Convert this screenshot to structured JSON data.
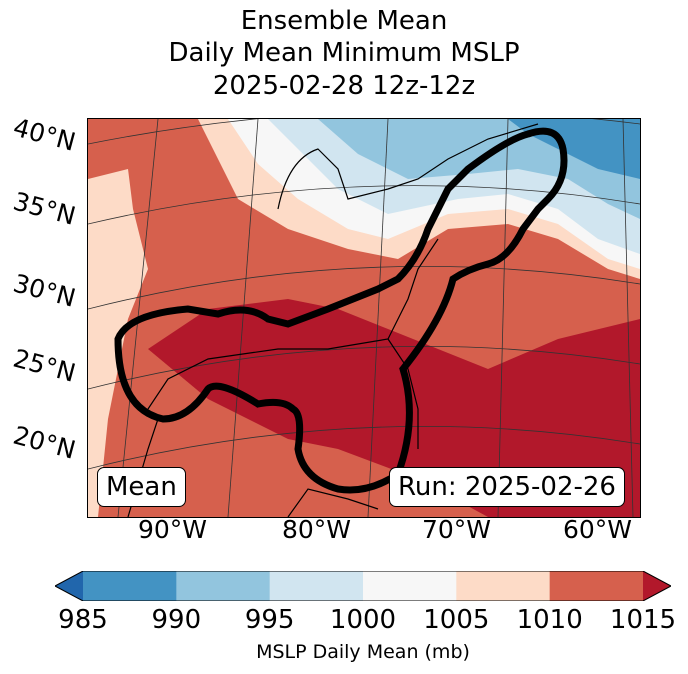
{
  "chart_data": {
    "type": "map",
    "title_lines": [
      "Ensemble Mean",
      "Daily Mean Minimum MSLP",
      "2025-02-28 12z-12z"
    ],
    "lat_ticks": [
      "40°N",
      "35°N",
      "30°N",
      "25°N",
      "20°N"
    ],
    "lon_ticks": [
      "90°W",
      "80°W",
      "70°W",
      "60°W"
    ],
    "legend_left": "Mean",
    "legend_right": "Run: 2025-02-26",
    "colorbar": {
      "label": "MSLP Daily Mean (mb)",
      "ticks": [
        "985",
        "990",
        "995",
        "1000",
        "1005",
        "1010",
        "1015"
      ],
      "levels": [
        985,
        990,
        995,
        1000,
        1005,
        1010,
        1015
      ],
      "colors": [
        "#4393c3",
        "#92c5de",
        "#d1e5f0",
        "#f7f7f7",
        "#fddbc7",
        "#d6604d"
      ],
      "under_color": "#2166ac",
      "over_color": "#b2182b",
      "extend": "both"
    },
    "contour_line": "black storm-track contour from Gulf of Mexico to Nova Scotia"
  }
}
